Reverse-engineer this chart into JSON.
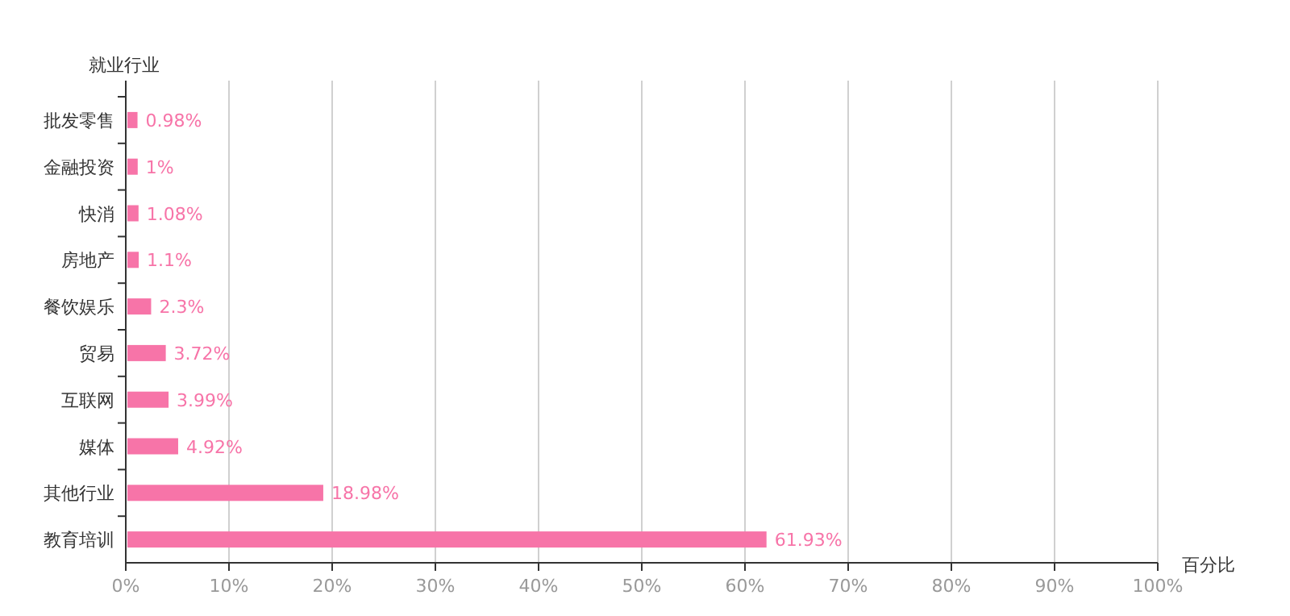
{
  "chart_data": {
    "type": "bar",
    "orientation": "horizontal",
    "ylabel": "就业行业",
    "xlabel": "百分比",
    "categories": [
      "批发零售",
      "金融投资",
      "快消",
      "房地产",
      "餐饮娱乐",
      "贸易",
      "互联网",
      "媒体",
      "其他行业",
      "教育培训"
    ],
    "values": [
      0.98,
      1,
      1.08,
      1.1,
      2.3,
      3.72,
      3.99,
      4.92,
      18.98,
      61.93
    ],
    "value_labels": [
      "0.98%",
      "1%",
      "1.08%",
      "1.1%",
      "2.3%",
      "3.72%",
      "3.99%",
      "4.92%",
      "18.98%",
      "61.93%"
    ],
    "color": "#f774a8",
    "xlim": [
      0,
      100
    ],
    "xticks": [
      {
        "value": 0,
        "label": "0%"
      },
      {
        "value": 10,
        "label": "10%"
      },
      {
        "value": 20,
        "label": "20%"
      },
      {
        "value": 30,
        "label": "30%"
      },
      {
        "value": 40,
        "label": "40%"
      },
      {
        "value": 50,
        "label": "50%"
      },
      {
        "value": 60,
        "label": "60%"
      },
      {
        "value": 70,
        "label": "70%"
      },
      {
        "value": 80,
        "label": "80%"
      },
      {
        "value": 90,
        "label": "90%"
      },
      {
        "value": 100,
        "label": "100%"
      }
    ],
    "grid": "x"
  }
}
